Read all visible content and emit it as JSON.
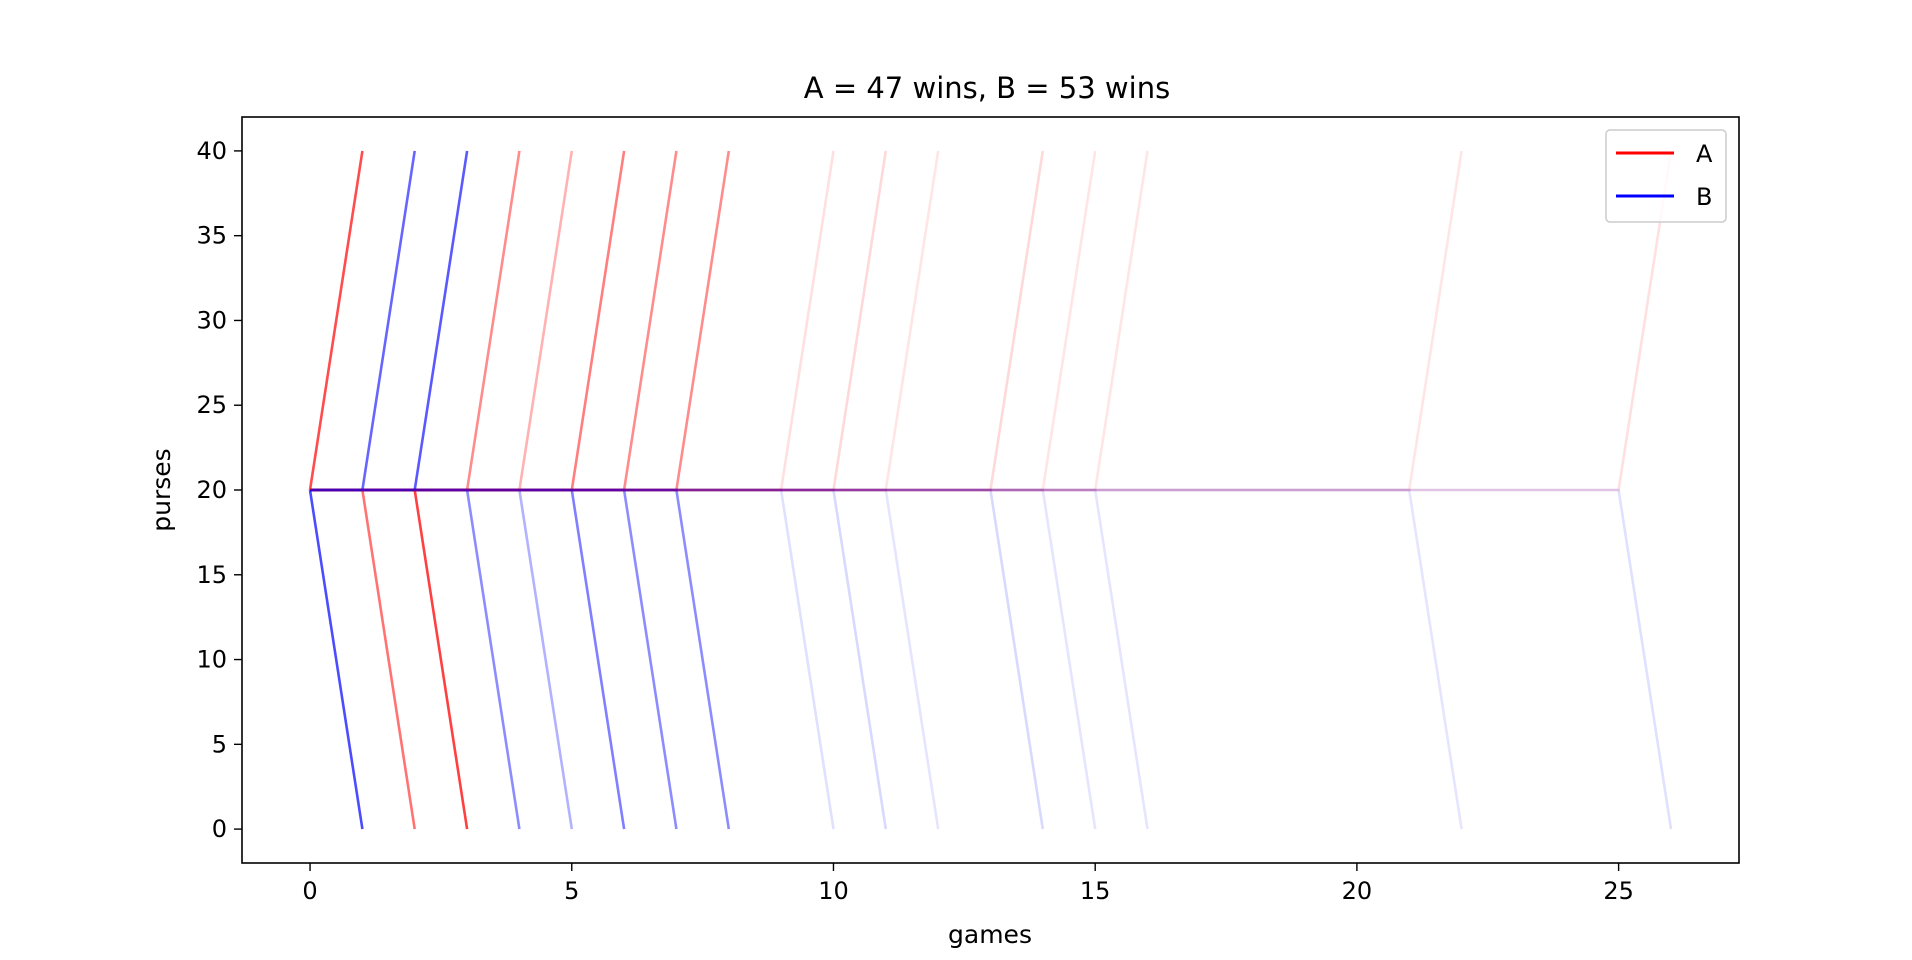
{
  "chart_data": {
    "type": "line",
    "title": "A = 47 wins, B = 53 wins",
    "xlabel": "games",
    "ylabel": "purses",
    "xlim": [
      -1.3,
      27.3
    ],
    "ylim": [
      -2,
      42
    ],
    "xticks": [
      0,
      5,
      10,
      15,
      20,
      25
    ],
    "yticks": [
      0,
      5,
      10,
      15,
      20,
      25,
      30,
      35,
      40
    ],
    "grid": false,
    "legend_position": "top-right",
    "legend": [
      {
        "label": "A",
        "color": "#ff0000"
      },
      {
        "label": "B",
        "color": "#0000ff"
      }
    ],
    "trajectory_groups": [
      {
        "end_game": 1,
        "red_alpha": 0.7,
        "blue_alpha": 0.7
      },
      {
        "end_game": 2,
        "red_alpha": 0.55,
        "blue_alpha": 0.6
      },
      {
        "end_game": 3,
        "red_alpha": 0.75,
        "blue_alpha": 0.65
      },
      {
        "end_game": 4,
        "red_alpha": 0.45,
        "blue_alpha": 0.45
      },
      {
        "end_game": 5,
        "red_alpha": 0.3,
        "blue_alpha": 0.3
      },
      {
        "end_game": 6,
        "red_alpha": 0.5,
        "blue_alpha": 0.5
      },
      {
        "end_game": 7,
        "red_alpha": 0.45,
        "blue_alpha": 0.45
      },
      {
        "end_game": 8,
        "red_alpha": 0.45,
        "blue_alpha": 0.45
      },
      {
        "end_game": 10,
        "red_alpha": 0.12,
        "blue_alpha": 0.12
      },
      {
        "end_game": 11,
        "red_alpha": 0.15,
        "blue_alpha": 0.15
      },
      {
        "end_game": 12,
        "red_alpha": 0.1,
        "blue_alpha": 0.1
      },
      {
        "end_game": 14,
        "red_alpha": 0.15,
        "blue_alpha": 0.15
      },
      {
        "end_game": 15,
        "red_alpha": 0.1,
        "blue_alpha": 0.1
      },
      {
        "end_game": 16,
        "red_alpha": 0.1,
        "blue_alpha": 0.1
      },
      {
        "end_game": 22,
        "red_alpha": 0.1,
        "blue_alpha": 0.1
      },
      {
        "end_game": 26,
        "red_alpha": 0.12,
        "blue_alpha": 0.12
      }
    ],
    "series": [
      {
        "name": "A",
        "color": "#ff0000",
        "alpha": 0.7,
        "x": [
          0,
          1
        ],
        "y": [
          20,
          40
        ]
      },
      {
        "name": "B",
        "color": "#0000ff",
        "alpha": 0.7,
        "x": [
          0,
          1
        ],
        "y": [
          20,
          0
        ]
      },
      {
        "name": "A",
        "color": "#ff0000",
        "alpha": 0.55,
        "x": [
          0,
          1,
          2
        ],
        "y": [
          20,
          20,
          0
        ]
      },
      {
        "name": "B",
        "color": "#0000ff",
        "alpha": 0.6,
        "x": [
          0,
          1,
          2
        ],
        "y": [
          20,
          20,
          40
        ]
      },
      {
        "name": "A",
        "color": "#ff0000",
        "alpha": 0.75,
        "x": [
          0,
          2,
          3
        ],
        "y": [
          20,
          20,
          0
        ]
      },
      {
        "name": "B",
        "color": "#0000ff",
        "alpha": 0.65,
        "x": [
          0,
          2,
          3
        ],
        "y": [
          20,
          20,
          40
        ]
      }
    ]
  }
}
